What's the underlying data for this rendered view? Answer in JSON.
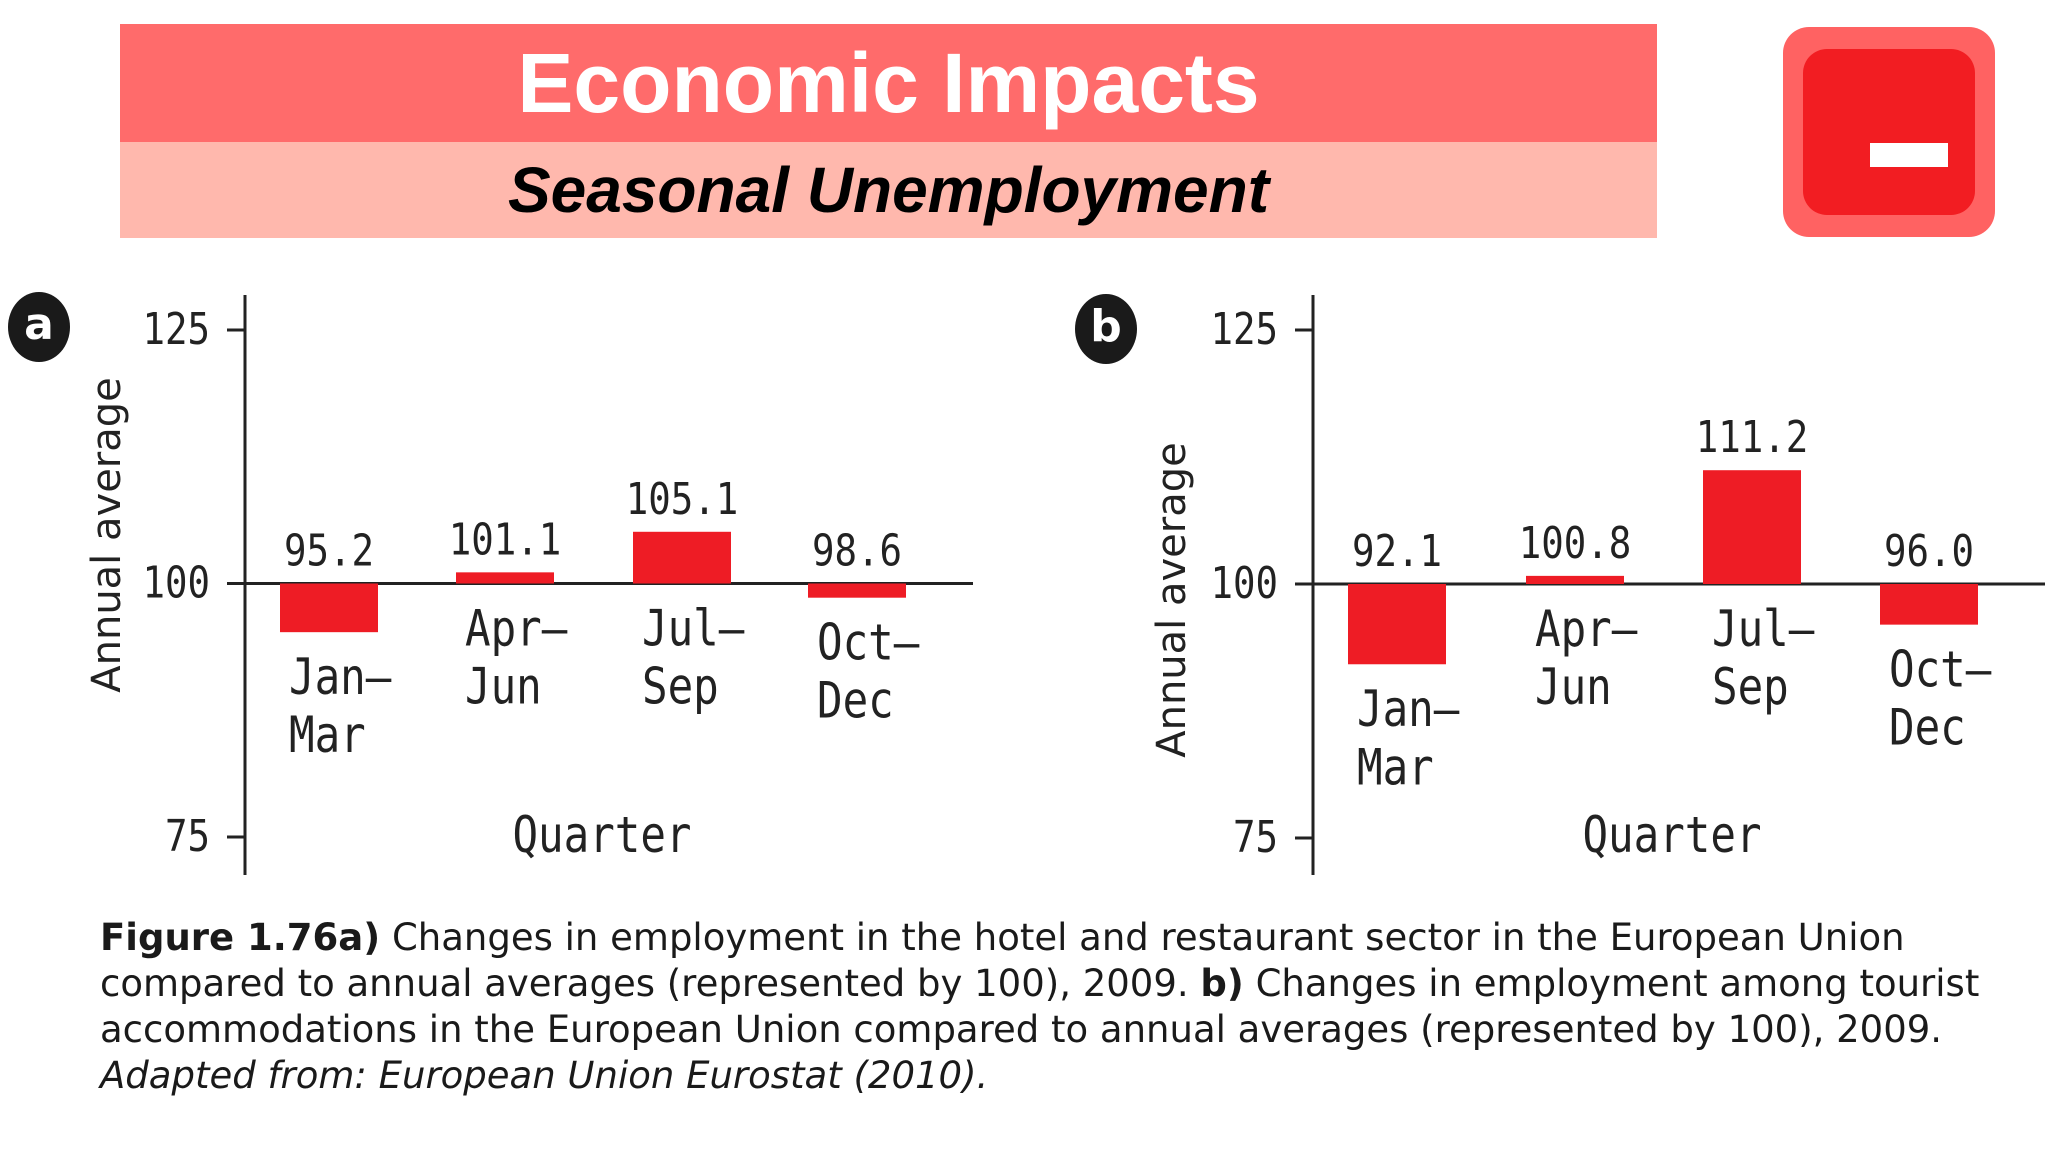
{
  "header": {
    "title": "Economic Impacts",
    "subtitle": "Seasonal Unemployment"
  },
  "colors": {
    "title_band": "#ff6b6b",
    "subtitle_band": "#ffb8ad",
    "bar": "#ee1c25",
    "button": "#f21d22"
  },
  "icons": {
    "minus_button": "minus-icon"
  },
  "chart_data": [
    {
      "panel_label": "a",
      "type": "bar",
      "baseline": 100,
      "ylim": [
        75,
        125
      ],
      "yticks": [
        75,
        100,
        125
      ],
      "ylabel": "Annual average",
      "xlabel": "Quarter",
      "categories": [
        [
          "Jan–",
          "Mar"
        ],
        [
          "Apr–",
          "Jun"
        ],
        [
          "Jul–",
          "Sep"
        ],
        [
          "Oct–",
          "Dec"
        ]
      ],
      "values": [
        95.2,
        101.1,
        105.1,
        98.6
      ],
      "value_labels": [
        "95.2",
        "101.1",
        "105.1",
        "98.6"
      ]
    },
    {
      "panel_label": "b",
      "type": "bar",
      "baseline": 100,
      "ylim": [
        75,
        125
      ],
      "yticks": [
        75,
        100,
        125
      ],
      "ylabel": "Annual average",
      "xlabel": "Quarter",
      "categories": [
        [
          "Jan–",
          "Mar"
        ],
        [
          "Apr–",
          "Jun"
        ],
        [
          "Jul–",
          "Sep"
        ],
        [
          "Oct–",
          "Dec"
        ]
      ],
      "values": [
        92.1,
        100.8,
        111.2,
        96.0
      ],
      "value_labels": [
        "92.1",
        "100.8",
        "111.2",
        "96.0"
      ]
    }
  ],
  "caption": {
    "fig_label": "Figure 1.76a)",
    "text_a": " Changes in employment in the hotel and restaurant sector in the European Union compared to annual averages (represented by 100), 2009. ",
    "b_label": "b)",
    "text_b": " Changes in employment among tourist accommodations in the European Union compared to annual averages (represented by 100), 2009. ",
    "source": "Adapted from: European Union Eurostat (2010)."
  }
}
